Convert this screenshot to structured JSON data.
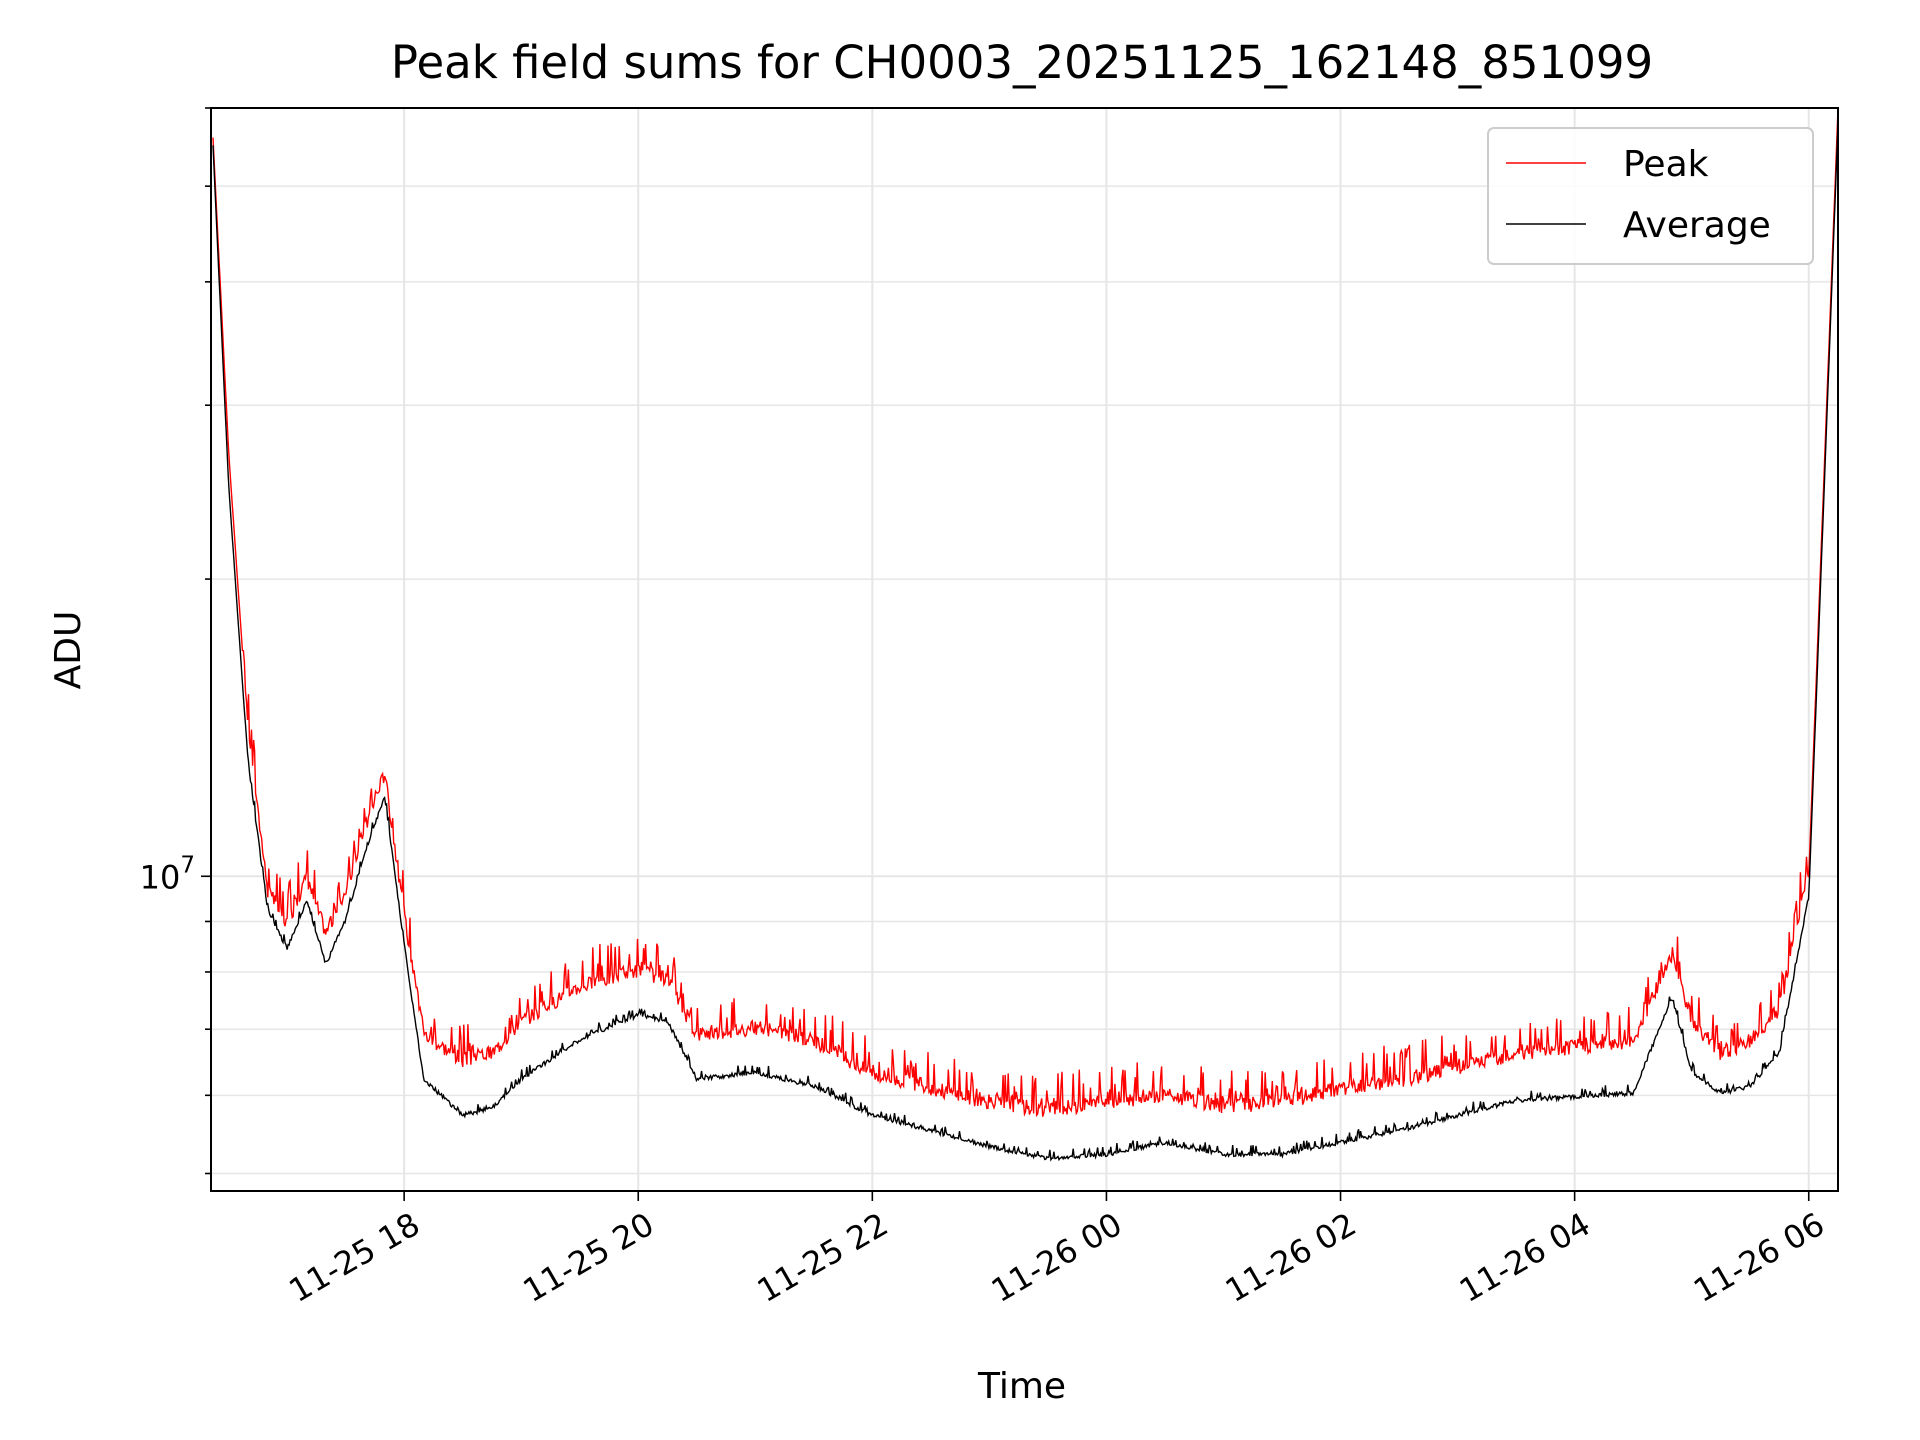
{
  "chart_data": {
    "type": "line",
    "title": "Peak field sums for CH0003_20251125_162148_851099",
    "xlabel": "Time",
    "ylabel": "ADU",
    "yscale": "log",
    "grid": true,
    "legend_position": "upper right",
    "x_range": [
      "2025-11-25 16:21",
      "2025-11-26 06:15"
    ],
    "y_range": [
      4800000,
      60000000
    ],
    "x_ticks": [
      "11-25 18",
      "11-25 20",
      "11-25 22",
      "11-26 00",
      "11-26 02",
      "11-26 04",
      "11-26 06"
    ],
    "y_ticks": [
      {
        "value": 10000000,
        "base": "10",
        "exponent": "7"
      }
    ],
    "series": [
      {
        "name": "Peak",
        "color": "#ff0000",
        "x": [
          "2025-11-25 16:22",
          "2025-11-25 16:30",
          "2025-11-25 16:40",
          "2025-11-25 16:50",
          "2025-11-25 17:00",
          "2025-11-25 17:10",
          "2025-11-25 17:20",
          "2025-11-25 17:30",
          "2025-11-25 17:40",
          "2025-11-25 17:50",
          "2025-11-25 18:00",
          "2025-11-25 18:10",
          "2025-11-25 18:30",
          "2025-11-25 18:45",
          "2025-11-25 19:00",
          "2025-11-25 19:30",
          "2025-11-25 20:00",
          "2025-11-25 20:15",
          "2025-11-25 20:30",
          "2025-11-25 21:00",
          "2025-11-25 21:30",
          "2025-11-25 22:00",
          "2025-11-25 22:30",
          "2025-11-25 23:00",
          "2025-11-25 23:30",
          "2025-11-26 00:00",
          "2025-11-26 00:30",
          "2025-11-26 01:00",
          "2025-11-26 01:30",
          "2025-11-26 02:00",
          "2025-11-26 02:30",
          "2025-11-26 03:00",
          "2025-11-26 03:30",
          "2025-11-26 04:00",
          "2025-11-26 04:30",
          "2025-11-26 04:50",
          "2025-11-26 05:00",
          "2025-11-26 05:15",
          "2025-11-26 05:30",
          "2025-11-26 05:45",
          "2025-11-26 06:00",
          "2025-11-26 06:15"
        ],
        "values": [
          56000000,
          27000000,
          14000000,
          9500000,
          8800000,
          9800000,
          8600000,
          9500000,
          11000000,
          12500000,
          9000000,
          6800000,
          6400000,
          6500000,
          7000000,
          7600000,
          7900000,
          7700000,
          6800000,
          6900000,
          6700000,
          6200000,
          6000000,
          5800000,
          5700000,
          5800000,
          5900000,
          5750000,
          5800000,
          6000000,
          6100000,
          6300000,
          6500000,
          6600000,
          6700000,
          8200000,
          7000000,
          6500000,
          6700000,
          7200000,
          10000000,
          60000000
        ]
      },
      {
        "name": "Average",
        "color": "#000000",
        "x": [
          "2025-11-25 16:22",
          "2025-11-25 16:30",
          "2025-11-25 16:40",
          "2025-11-25 16:50",
          "2025-11-25 17:00",
          "2025-11-25 17:10",
          "2025-11-25 17:20",
          "2025-11-25 17:30",
          "2025-11-25 17:40",
          "2025-11-25 17:50",
          "2025-11-25 18:00",
          "2025-11-25 18:10",
          "2025-11-25 18:30",
          "2025-11-25 18:45",
          "2025-11-25 19:00",
          "2025-11-25 19:30",
          "2025-11-25 20:00",
          "2025-11-25 20:15",
          "2025-11-25 20:30",
          "2025-11-25 21:00",
          "2025-11-25 21:30",
          "2025-11-25 22:00",
          "2025-11-25 22:30",
          "2025-11-25 23:00",
          "2025-11-25 23:30",
          "2025-11-26 00:00",
          "2025-11-26 00:30",
          "2025-11-26 01:00",
          "2025-11-26 01:30",
          "2025-11-26 02:00",
          "2025-11-26 02:30",
          "2025-11-26 03:00",
          "2025-11-26 03:30",
          "2025-11-26 04:00",
          "2025-11-26 04:30",
          "2025-11-26 04:50",
          "2025-11-26 05:00",
          "2025-11-26 05:15",
          "2025-11-26 05:30",
          "2025-11-26 05:45",
          "2025-11-26 06:00",
          "2025-11-26 06:15"
        ],
        "values": [
          55000000,
          25000000,
          13000000,
          9200000,
          8400000,
          9400000,
          8100000,
          9000000,
          10500000,
          12000000,
          8500000,
          6200000,
          5700000,
          5800000,
          6200000,
          6800000,
          7200000,
          7100000,
          6200000,
          6300000,
          6100000,
          5700000,
          5500000,
          5300000,
          5150000,
          5200000,
          5350000,
          5200000,
          5200000,
          5350000,
          5500000,
          5700000,
          5900000,
          5950000,
          6000000,
          7500000,
          6300000,
          6000000,
          6100000,
          6600000,
          9500000,
          58000000
        ]
      }
    ]
  }
}
